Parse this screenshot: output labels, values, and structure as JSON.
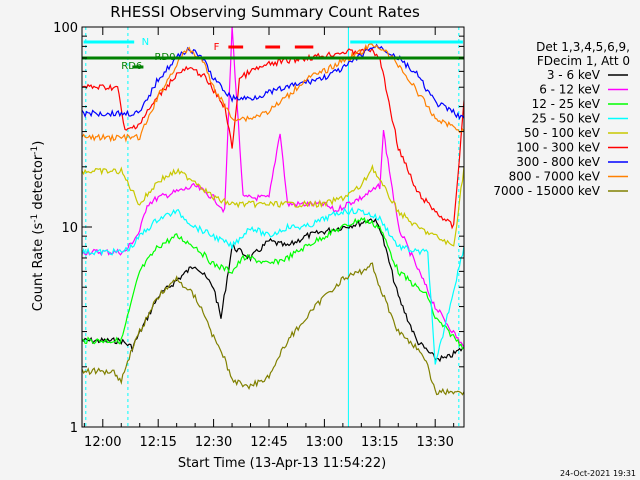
{
  "chart_data": {
    "type": "line",
    "title": "RHESSI Observing Summary Count Rates",
    "xlabel": "Start Time (13-Apr-13 11:54:22)",
    "ylabel_main": "Count Rate (s",
    "ylabel_sup": "-1",
    "ylabel_mid": " detector",
    "ylabel_end": ")",
    "y_scale": "log",
    "ylim": [
      1,
      100
    ],
    "xlim_minutes": [
      -5.63,
      97.8
    ],
    "x_ticks": [
      {
        "minute": 0,
        "label": "12:00"
      },
      {
        "minute": 15,
        "label": "12:15"
      },
      {
        "minute": 30,
        "label": "12:30"
      },
      {
        "minute": 45,
        "label": "12:45"
      },
      {
        "minute": 60,
        "label": "13:00"
      },
      {
        "minute": 75,
        "label": "13:15"
      },
      {
        "minute": 90,
        "label": "13:30"
      }
    ],
    "y_ticks": [
      {
        "value": 1,
        "label": "1"
      },
      {
        "value": 10,
        "label": "10"
      },
      {
        "value": 100,
        "label": "100"
      }
    ],
    "legend": {
      "placement": "right",
      "header_line1": "Det 1,3,4,5,6,9,",
      "header_line2": "FDecim 1, Att 0"
    },
    "series": [
      {
        "name": "3 - 6 keV",
        "color": "#000000",
        "x": [
          -5.6,
          5,
          8,
          15,
          25,
          30,
          32,
          35,
          40,
          45,
          50,
          55,
          60,
          65,
          70,
          73,
          75,
          80,
          85,
          90,
          93,
          97.8
        ],
        "y": [
          2.7,
          2.7,
          2.5,
          4.5,
          6.5,
          5.0,
          3.5,
          8.0,
          7.0,
          8.5,
          8.0,
          9.0,
          9.5,
          10.0,
          10.5,
          11.0,
          10.0,
          4.5,
          2.7,
          2.2,
          2.2,
          2.5
        ]
      },
      {
        "name": "6 - 12 keV",
        "color": "#ff00ff",
        "x": [
          -5.6,
          6,
          10,
          12,
          15,
          20,
          25,
          30,
          33,
          35,
          38,
          40,
          45,
          48,
          50,
          52,
          55,
          60,
          63,
          66,
          70,
          75,
          76,
          80,
          90,
          97.8
        ],
        "y": [
          7.5,
          7.5,
          9.5,
          13,
          14,
          15,
          16,
          14,
          12,
          100,
          14,
          14,
          14,
          30,
          13,
          13,
          13,
          13,
          12,
          13,
          14,
          16,
          30,
          10,
          4,
          2.5
        ]
      },
      {
        "name": "12 - 25 keV",
        "color": "#00ff00",
        "x": [
          -5.6,
          5,
          10,
          15,
          20,
          25,
          30,
          35,
          38,
          40,
          45,
          50,
          55,
          60,
          65,
          70,
          75,
          80,
          85,
          88,
          90,
          97.8
        ],
        "y": [
          2.7,
          2.7,
          6,
          8,
          9,
          8,
          6.5,
          6,
          7,
          7,
          6.5,
          7,
          8,
          9,
          10,
          11,
          10,
          6,
          5,
          4.5,
          3.5,
          2.5
        ]
      },
      {
        "name": "25 - 50 keV",
        "color": "#00ffff",
        "x": [
          -5.6,
          5,
          8,
          10,
          15,
          20,
          25,
          30,
          35,
          40,
          45,
          50,
          55,
          60,
          65,
          70,
          75,
          80,
          85,
          88,
          90,
          97.8
        ],
        "y": [
          7.5,
          7.5,
          8,
          9,
          11,
          12,
          10,
          9,
          8,
          10,
          9,
          10,
          10,
          11,
          12,
          12,
          11,
          8,
          7.5,
          7.5,
          2,
          8
        ]
      },
      {
        "name": "50 - 100 keV",
        "color": "#c8c800",
        "x": [
          -5.6,
          5,
          10,
          15,
          20,
          25,
          30,
          35,
          40,
          45,
          50,
          55,
          60,
          65,
          70,
          73,
          75,
          80,
          85,
          90,
          95,
          97.8
        ],
        "y": [
          19,
          19,
          13,
          17,
          19,
          17,
          14,
          13,
          13,
          13,
          13,
          13,
          13,
          14,
          16,
          20,
          17,
          12,
          10,
          9,
          8,
          20
        ]
      },
      {
        "name": "100 - 300 keV",
        "color": "#ff0000",
        "x": [
          -5.6,
          4,
          6,
          10,
          15,
          20,
          23,
          27,
          30,
          33,
          35,
          37,
          40,
          45,
          50,
          55,
          60,
          65,
          70,
          72,
          75,
          80,
          85,
          90,
          95,
          97.8
        ],
        "y": [
          50,
          50,
          30,
          33,
          45,
          58,
          62,
          58,
          48,
          40,
          25,
          55,
          60,
          65,
          68,
          70,
          72,
          75,
          75,
          78,
          70,
          25,
          15,
          12,
          10,
          43
        ]
      },
      {
        "name": "300 - 800 keV",
        "color": "#0000ff",
        "x": [
          -5.6,
          5,
          10,
          15,
          20,
          23,
          27,
          30,
          35,
          40,
          45,
          50,
          55,
          60,
          65,
          70,
          72,
          75,
          80,
          85,
          90,
          97.8
        ],
        "y": [
          37,
          37,
          37,
          55,
          70,
          78,
          70,
          55,
          44,
          44,
          47,
          50,
          53,
          56,
          62,
          72,
          78,
          80,
          70,
          58,
          42,
          35
        ]
      },
      {
        "name": "800 - 7000 keV",
        "color": "#ff8000",
        "x": [
          -5.6,
          5,
          10,
          15,
          20,
          23,
          27,
          30,
          35,
          40,
          45,
          50,
          55,
          60,
          65,
          70,
          72,
          75,
          80,
          85,
          90,
          97.8
        ],
        "y": [
          28,
          28,
          28,
          45,
          65,
          78,
          68,
          50,
          35,
          35,
          38,
          45,
          55,
          60,
          68,
          75,
          80,
          80,
          65,
          48,
          35,
          30
        ]
      },
      {
        "name": "7000 - 15000 keV",
        "color": "#808000",
        "x": [
          -5.6,
          3,
          5,
          8,
          10,
          15,
          20,
          25,
          28,
          30,
          33,
          35,
          40,
          45,
          50,
          55,
          60,
          65,
          70,
          73,
          75,
          80,
          85,
          88,
          90,
          97.8
        ],
        "y": [
          1.9,
          1.9,
          1.7,
          2.5,
          3,
          4.5,
          5.5,
          4.5,
          3.5,
          2.8,
          2.2,
          1.7,
          1.6,
          1.8,
          2.7,
          3.5,
          4.5,
          5.5,
          6,
          6.5,
          5,
          3,
          2.5,
          2,
          1.5,
          1.5
        ]
      }
    ],
    "annotations": [
      {
        "text": "N",
        "color": "#00ffff"
      },
      {
        "text": "RD0",
        "color": "#008000"
      },
      {
        "text": "RD6",
        "color": "#008000"
      },
      {
        "text": "F",
        "color": "#ff0000"
      }
    ],
    "timestamp": "24-Oct-2021 19:31"
  }
}
